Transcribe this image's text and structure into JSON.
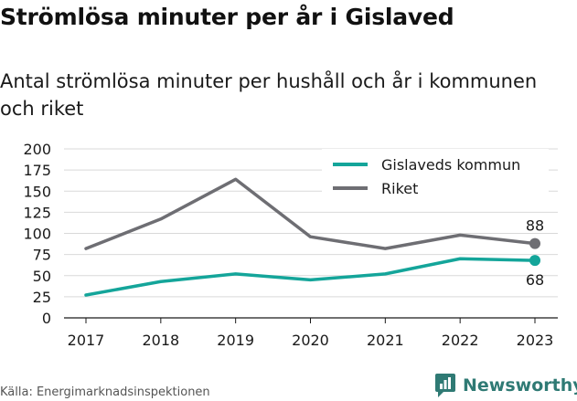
{
  "header": {
    "title": "Strömlösa minuter per år i Gislaved",
    "subtitle": "Antal strömlösa minuter per hushåll och år i kommunen och riket"
  },
  "footer": {
    "source": "Källa: Energimarknadsinspektionen",
    "brand": "Newsworthy"
  },
  "colors": {
    "gislaved": "#14a59a",
    "riket": "#6e6e73",
    "grid": "#d9d9d9",
    "brand": "#2f7a74"
  },
  "chart_data": {
    "type": "line",
    "x": [
      "2017",
      "2018",
      "2019",
      "2020",
      "2021",
      "2022",
      "2023"
    ],
    "ylim": [
      0,
      200
    ],
    "yticks": [
      0,
      25,
      50,
      75,
      100,
      125,
      150,
      175,
      200
    ],
    "grid": "horizontal",
    "legend_position": "top-right",
    "series": [
      {
        "name": "Gislaveds kommun",
        "values": [
          27,
          43,
          52,
          45,
          52,
          70,
          68
        ],
        "end_label": "68"
      },
      {
        "name": "Riket",
        "values": [
          82,
          117,
          164,
          96,
          82,
          98,
          88
        ],
        "end_label": "88"
      }
    ]
  }
}
